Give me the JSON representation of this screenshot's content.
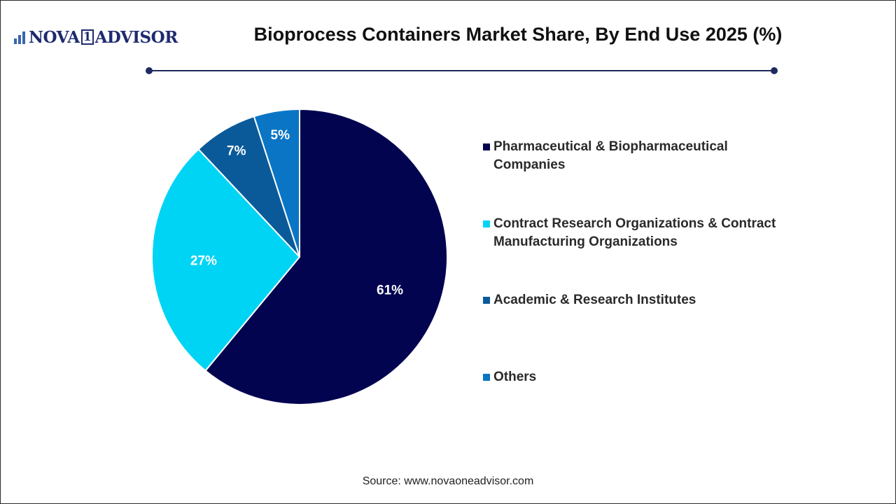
{
  "logo": {
    "left": "NOVA",
    "one": "1",
    "right": "ADVISOR"
  },
  "title": "Bioprocess Containers Market Share, By End Use 2025 (%)",
  "source": "Source: www.novaoneadvisor.com",
  "colors": {
    "navy": "#020450",
    "cyan": "#00d4f5",
    "mid_blue": "#0a5a9a",
    "blue": "#0a75c5",
    "rule": "#1e2a5e"
  },
  "chart_data": {
    "type": "pie",
    "title": "Bioprocess Containers Market Share, By End Use 2025 (%)",
    "start_angle_deg": 0,
    "direction": "clockwise",
    "legend_position": "right",
    "slices": [
      {
        "label": "Pharmaceutical & Biopharmaceutical Companies",
        "legend_lines": [
          "Pharmaceutical & Biopharmaceutical",
          "Companies"
        ],
        "value": 61,
        "display": "61%",
        "color": "#020450"
      },
      {
        "label": "Contract Research Organizations & Contract Manufacturing Organizations",
        "legend_lines": [
          "Contract Research Organizations & Contract",
          "Manufacturing Organizations"
        ],
        "value": 27,
        "display": "27%",
        "color": "#00d4f5"
      },
      {
        "label": "Academic & Research Institutes",
        "legend_lines": [
          "Academic & Research Institutes"
        ],
        "value": 7,
        "display": "7%",
        "color": "#0a5a9a"
      },
      {
        "label": "Others",
        "legend_lines": [
          "Others"
        ],
        "value": 5,
        "display": "5%",
        "color": "#0a75c5"
      }
    ]
  }
}
